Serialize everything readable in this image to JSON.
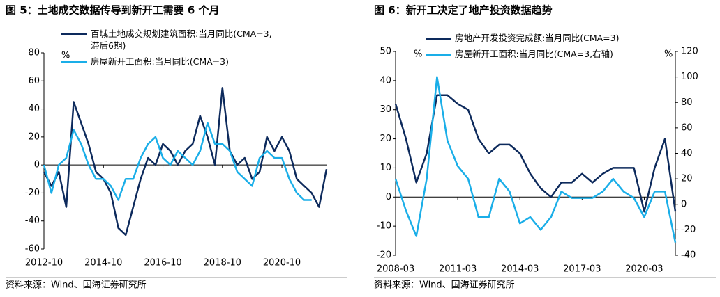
{
  "chart_data": [
    {
      "type": "line",
      "title": "图 5：土地成交数据传导到新开工需要 6 个月",
      "ylabel": "%",
      "source": "资料来源：Wind、国海证券研究所",
      "x": [
        "2012-10",
        "2013-01",
        "2013-04",
        "2013-07",
        "2013-10",
        "2014-01",
        "2014-04",
        "2014-07",
        "2014-10",
        "2015-01",
        "2015-04",
        "2015-07",
        "2015-10",
        "2016-01",
        "2016-04",
        "2016-07",
        "2016-10",
        "2017-01",
        "2017-04",
        "2017-07",
        "2017-10",
        "2018-01",
        "2018-04",
        "2018-07",
        "2018-10",
        "2019-01",
        "2019-04",
        "2019-07",
        "2019-10",
        "2020-01",
        "2020-04",
        "2020-07",
        "2020-10",
        "2021-01",
        "2021-04",
        "2021-07",
        "2021-10",
        "2022-01",
        "2022-04"
      ],
      "xticks": [
        "2012-10",
        "2014-10",
        "2016-10",
        "2018-10",
        "2020-10"
      ],
      "ylim": [
        -60,
        80
      ],
      "yticks": [
        -60,
        -40,
        -20,
        0,
        20,
        40,
        60,
        80
      ],
      "series": [
        {
          "name": "百城土地成交规划建筑面积:当月同比(CMA=3,\n滞后6期)",
          "color": "#0d2a5c",
          "values": [
            -5,
            -15,
            -5,
            -30,
            45,
            30,
            15,
            -5,
            -10,
            -20,
            -45,
            -50,
            -30,
            -10,
            5,
            0,
            15,
            10,
            0,
            10,
            15,
            35,
            20,
            0,
            55,
            10,
            0,
            5,
            -10,
            -5,
            20,
            10,
            20,
            10,
            -10,
            -15,
            -20,
            -30,
            -3
          ]
        },
        {
          "name": "房屋新开工面积:当月同比(CMA=3)",
          "color": "#1aaee8",
          "values": [
            0,
            -20,
            0,
            5,
            25,
            15,
            0,
            -10,
            -10,
            -15,
            -25,
            -10,
            -10,
            5,
            15,
            20,
            5,
            0,
            10,
            5,
            0,
            10,
            30,
            15,
            15,
            10,
            -5,
            -10,
            -15,
            5,
            10,
            5,
            5,
            -10,
            -20,
            -25,
            -25,
            null,
            null
          ]
        }
      ]
    },
    {
      "type": "line",
      "title": "图 6：新开工决定了地产投资数据趋势",
      "ylabel": "%",
      "y2label": "%",
      "source": "资料来源：Wind、国海证券研究所",
      "x": [
        "2008-03",
        "2008-09",
        "2009-03",
        "2009-09",
        "2010-03",
        "2010-09",
        "2011-03",
        "2011-09",
        "2012-03",
        "2012-09",
        "2013-03",
        "2013-09",
        "2014-03",
        "2014-09",
        "2015-03",
        "2015-09",
        "2016-03",
        "2016-09",
        "2017-03",
        "2017-09",
        "2018-03",
        "2018-09",
        "2019-03",
        "2019-09",
        "2020-03",
        "2020-09",
        "2021-03",
        "2021-09"
      ],
      "xticks": [
        "2008-03",
        "2011-03",
        "2014-03",
        "2017-03",
        "2020-03"
      ],
      "ylim": [
        -20,
        50
      ],
      "yticks": [
        -20,
        -10,
        0,
        10,
        20,
        30,
        40,
        50
      ],
      "y2lim": [
        -40,
        120
      ],
      "y2ticks": [
        -40,
        -20,
        0,
        20,
        40,
        60,
        80,
        100,
        120
      ],
      "series": [
        {
          "name": "房地产开发投资完成额:当月同比(CMA=3)",
          "color": "#0d2a5c",
          "values": [
            32,
            20,
            5,
            15,
            35,
            35,
            32,
            30,
            20,
            15,
            18,
            18,
            15,
            8,
            3,
            0,
            5,
            5,
            8,
            5,
            8,
            10,
            10,
            10,
            -5,
            10,
            20,
            -5
          ]
        },
        {
          "name": "房屋新开工面积:当月同比(CMA=3,右轴)",
          "color": "#1aaee8",
          "axis": "y2",
          "values": [
            20,
            -5,
            -25,
            20,
            100,
            50,
            30,
            20,
            -10,
            -10,
            20,
            10,
            -15,
            -10,
            -20,
            -10,
            10,
            5,
            5,
            5,
            10,
            20,
            10,
            5,
            -10,
            10,
            10,
            -30
          ]
        }
      ]
    }
  ]
}
